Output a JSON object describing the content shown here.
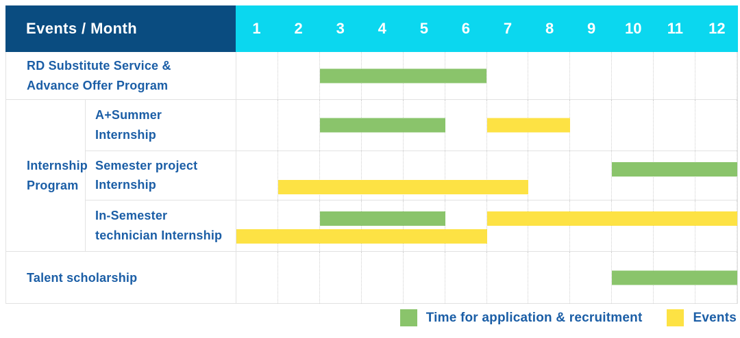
{
  "colors": {
    "header_navy": "#0a4c80",
    "header_cyan": "#0bd7ef",
    "application_green": "#8ac46b",
    "event_yellow": "#fde244",
    "label_blue": "#1b5ea6",
    "grid_line": "#e2e2e2"
  },
  "chart_data": {
    "type": "gantt",
    "corner_header": "Events / Month",
    "months": [
      "1",
      "2",
      "3",
      "4",
      "5",
      "6",
      "7",
      "8",
      "9",
      "10",
      "11",
      "12"
    ],
    "x_range": [
      1,
      12
    ],
    "group": {
      "label": "Internship Program",
      "label_lines": [
        "Internship",
        "Program"
      ],
      "row_indexes": [
        1,
        2,
        3
      ]
    },
    "rows": [
      {
        "label": "RD Substitute Service & Advance Offer Program",
        "label_lines": [
          "RD Substitute Service &",
          "Advance Offer Program"
        ],
        "in_group": false,
        "bars": [
          {
            "type": "application",
            "start_month": 3,
            "end_month": 6,
            "lane": "mid"
          }
        ]
      },
      {
        "label": "A+Summer Internship",
        "label_lines": [
          "A+Summer",
          "Internship"
        ],
        "in_group": true,
        "bars": [
          {
            "type": "application",
            "start_month": 3,
            "end_month": 5,
            "lane": "mid"
          },
          {
            "type": "event",
            "start_month": 7,
            "end_month": 8,
            "lane": "mid"
          }
        ]
      },
      {
        "label": "Semester project Internship",
        "label_lines": [
          "Semester project",
          "Internship"
        ],
        "in_group": true,
        "bars": [
          {
            "type": "application",
            "start_month": 10,
            "end_month": 12,
            "lane": "top"
          },
          {
            "type": "event",
            "start_month": 2,
            "end_month": 7,
            "lane": "bottom"
          }
        ]
      },
      {
        "label": "In-Semester technician Internship",
        "label_lines": [
          "In-Semester",
          "technician Internship"
        ],
        "in_group": true,
        "bars": [
          {
            "type": "application",
            "start_month": 3,
            "end_month": 5,
            "lane": "top"
          },
          {
            "type": "event",
            "start_month": 7,
            "end_month": 12,
            "lane": "top"
          },
          {
            "type": "event",
            "start_month": 1,
            "end_month": 6,
            "lane": "bottom"
          }
        ]
      },
      {
        "label": "Talent scholarship",
        "label_lines": [
          "Talent scholarship"
        ],
        "in_group": false,
        "bars": [
          {
            "type": "application",
            "start_month": 10,
            "end_month": 12,
            "lane": "mid"
          }
        ]
      }
    ],
    "legend": [
      {
        "type": "application",
        "label": "Time for application & recruitment",
        "color": "#8ac46b"
      },
      {
        "type": "event",
        "label": "Events",
        "color": "#fde244"
      }
    ]
  }
}
